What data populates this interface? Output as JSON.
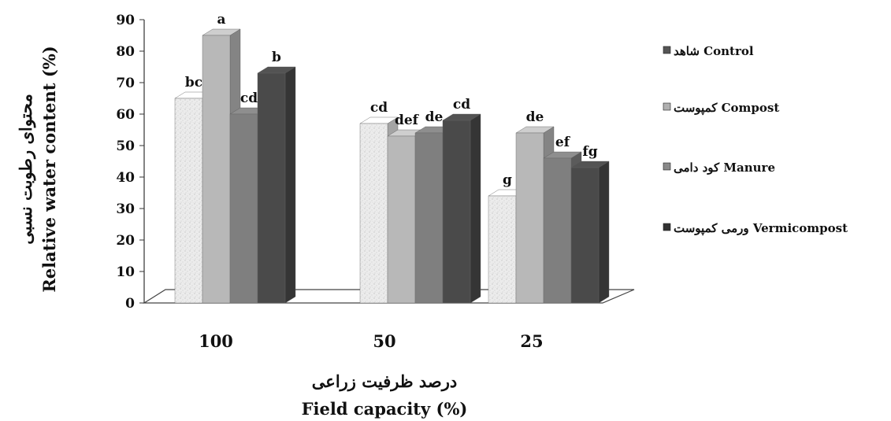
{
  "chart_data": {
    "type": "bar",
    "categories": [
      "100",
      "50",
      "25"
    ],
    "series": [
      {
        "name": "شاهد Control",
        "values": [
          65,
          57,
          34
        ],
        "labels": [
          "bc",
          "cd",
          "g"
        ],
        "color": "#e4e4e4",
        "pattern": "speckle"
      },
      {
        "name": "کمپوست Compost",
        "values": [
          85,
          53,
          54
        ],
        "labels": [
          "a",
          "def",
          "de"
        ],
        "color": "#b8b8b8"
      },
      {
        "name": "کود دامی Manure",
        "values": [
          60,
          54,
          46
        ],
        "labels": [
          "cd",
          "de",
          "ef"
        ],
        "color": "#7f7f7f"
      },
      {
        "name": "ورمی کمپوست Vermicompost",
        "values": [
          73,
          58,
          43
        ],
        "labels": [
          "b",
          "cd",
          "fg"
        ],
        "color": "#4a4a4a"
      }
    ],
    "legend": {
      "position": "right",
      "entries": [
        "شاهد Control",
        "کمپوست Compost",
        "کود دامی Manure",
        "ورمی کمپوست Vermicompost"
      ],
      "swatch_colors": [
        "#555555",
        "#b0b0b0",
        "#8a8a8a",
        "#333333"
      ]
    },
    "ylabel": [
      "محتوای رطوبت نسبی",
      "Relative water content (%)"
    ],
    "xlabel": [
      "درصد ظرفیت زراعی",
      "Field capacity (%)"
    ],
    "yticks": [
      "0",
      "10",
      "20",
      "30",
      "40",
      "50",
      "60",
      "70",
      "80",
      "90"
    ],
    "ylim": [
      0,
      90
    ],
    "grid": false,
    "style": "3d-clustered-column"
  }
}
